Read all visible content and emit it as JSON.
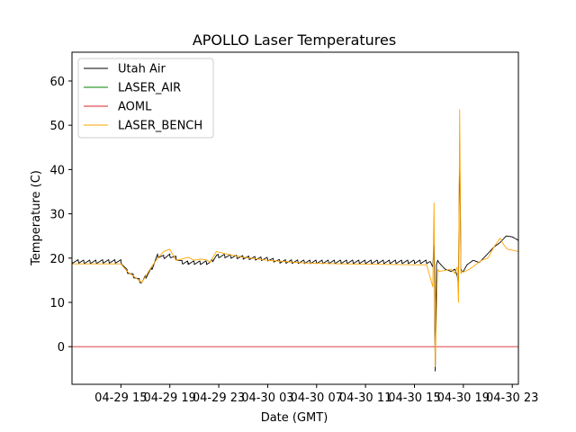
{
  "chart_data": {
    "type": "line",
    "title": "APOLLO Laser Temperatures",
    "xlabel": "Date (GMT)",
    "ylabel": "Temperature (C)",
    "x_unit": "hours since 04-29 11:00 GMT",
    "xlim": [
      0,
      36.5
    ],
    "ylim": [
      -8.5,
      66.5
    ],
    "grid": false,
    "legend_position": "top-left",
    "y_ticks": [
      0,
      10,
      20,
      30,
      40,
      50,
      60
    ],
    "x_ticks": [
      {
        "x": 4,
        "label": "04-29 15"
      },
      {
        "x": 8,
        "label": "04-29 19"
      },
      {
        "x": 12,
        "label": "04-29 23"
      },
      {
        "x": 16,
        "label": "04-30 03"
      },
      {
        "x": 20,
        "label": "04-30 07"
      },
      {
        "x": 24,
        "label": "04-30 11"
      },
      {
        "x": 28,
        "label": "04-30 15"
      },
      {
        "x": 32,
        "label": "04-30 19"
      },
      {
        "x": 36,
        "label": "04-30 23"
      }
    ],
    "series": [
      {
        "name": "Utah Air",
        "color": "#000000",
        "sawtooth": {
          "x_start": 0,
          "x_end": 29.3,
          "period": 0.5,
          "amplitude": 0.9
        },
        "x": [
          0,
          4.0,
          4.5,
          5.0,
          5.7,
          6.5,
          7.0,
          7.5,
          8.0,
          8.5,
          9.0,
          9.5,
          10.0,
          11.0,
          11.3,
          11.8,
          12.5,
          14.0,
          16.0,
          17.0,
          19.0,
          22.0,
          25.0,
          28.0,
          29.3,
          29.5,
          29.6,
          29.7,
          29.8,
          29.9,
          30.0,
          30.5,
          31.0,
          31.3,
          31.5,
          31.6,
          31.7,
          31.8,
          31.9,
          32.0,
          32.3,
          32.8,
          33.3,
          34.0,
          34.5,
          35.0,
          35.5,
          36.0,
          36.5
        ],
        "y": [
          19.2,
          19.2,
          17.0,
          16.0,
          14.5,
          17.5,
          20.5,
          20.2,
          20.5,
          20.0,
          19.0,
          19.0,
          19.0,
          19.0,
          19.0,
          20.5,
          20.5,
          20.2,
          19.8,
          19.3,
          19.2,
          19.2,
          19.2,
          19.2,
          19.2,
          18.0,
          23.0,
          -5.5,
          18.5,
          19.5,
          19.0,
          17.5,
          17.0,
          17.5,
          16.0,
          14.0,
          46.0,
          17.5,
          17.0,
          17.0,
          18.5,
          19.5,
          19.0,
          21.0,
          22.5,
          23.5,
          25.0,
          24.8,
          24.0
        ]
      },
      {
        "name": "LASER_AIR",
        "color": "#008000",
        "x": [],
        "y": []
      },
      {
        "name": "AOML",
        "color": "#d62728",
        "x": [
          0,
          36.5
        ],
        "y": [
          0,
          0
        ]
      },
      {
        "name": "LASER_BENCH",
        "color": "#ffa500",
        "x": [
          0,
          4.0,
          4.5,
          5.0,
          5.7,
          6.5,
          7.0,
          7.5,
          8.0,
          8.5,
          9.0,
          9.5,
          10.0,
          10.5,
          11.0,
          11.3,
          11.8,
          12.5,
          14.0,
          16.0,
          19.0,
          22.0,
          25.0,
          28.0,
          29.0,
          29.5,
          29.6,
          29.7,
          29.8,
          29.9,
          30.0,
          30.5,
          31.0,
          31.3,
          31.5,
          31.6,
          31.7,
          31.8,
          31.9,
          32.0,
          32.5,
          33.0,
          33.5,
          34.0,
          34.5,
          35.0,
          35.3,
          35.6,
          36.0,
          36.5
        ],
        "y": [
          18.7,
          18.7,
          17.0,
          16.0,
          14.5,
          18.0,
          20.0,
          21.5,
          22.0,
          19.5,
          19.8,
          20.2,
          19.5,
          19.8,
          19.6,
          19.0,
          21.5,
          21.0,
          20.2,
          19.5,
          18.9,
          18.7,
          18.6,
          18.5,
          18.5,
          13.5,
          32.5,
          -4.5,
          8.0,
          17.5,
          17.0,
          17.2,
          17.5,
          16.5,
          18.0,
          10.0,
          53.5,
          16.5,
          17.0,
          16.8,
          17.5,
          18.5,
          19.5,
          20.0,
          22.5,
          24.5,
          23.0,
          22.0,
          21.8,
          21.5
        ]
      }
    ]
  }
}
